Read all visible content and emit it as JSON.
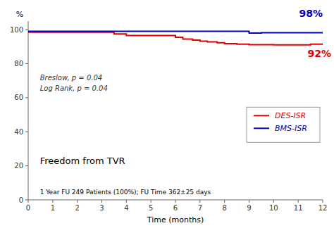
{
  "chart_data": {
    "type": "line",
    "xlabel": "Time (months)",
    "ylabel": "%",
    "xlim": [
      0,
      12
    ],
    "ylim": [
      0,
      105
    ],
    "xticks": [
      0,
      1,
      2,
      3,
      4,
      5,
      6,
      7,
      8,
      9,
      10,
      11,
      12
    ],
    "yticks": [
      0,
      20,
      40,
      60,
      80,
      100
    ],
    "grid": false,
    "legend": "right",
    "series": [
      {
        "name": "DES-ISR",
        "color": "#dd0000",
        "x": [
          0,
          3.5,
          3.5,
          4.0,
          4.0,
          6.0,
          6.0,
          6.3,
          6.3,
          6.7,
          6.7,
          7.0,
          7.0,
          7.3,
          7.3,
          7.7,
          7.7,
          8.0,
          8.0,
          8.5,
          8.5,
          9.0,
          9.0,
          10.0,
          10.0,
          11.5,
          11.5,
          12.0
        ],
        "values": [
          98.5,
          98.5,
          97.5,
          97.5,
          96.5,
          96.5,
          95.5,
          95.5,
          94.5,
          94.5,
          93.8,
          93.8,
          93.2,
          93.2,
          92.8,
          92.8,
          92.3,
          92.3,
          91.8,
          91.8,
          91.5,
          91.5,
          91.2,
          91.2,
          91.0,
          91.0,
          91.5,
          91.5
        ]
      },
      {
        "name": "BMS-ISR",
        "color": "#0000bb",
        "x": [
          0,
          9.0,
          9.0,
          9.5,
          9.5,
          12.0
        ],
        "values": [
          99.0,
          99.0,
          98.0,
          98.0,
          98.2,
          98.2
        ]
      }
    ],
    "annotations": [
      {
        "text": "98%",
        "color": "#0000bb"
      },
      {
        "text": "92%",
        "color": "#dd0000"
      },
      {
        "text": "Breslow, p = 0.04"
      },
      {
        "text": "Log Rank, p = 0.04"
      },
      {
        "text": "Freedom from TVR"
      },
      {
        "text": "1 Year FU 249 Patients (100%); FU Time 362±25 days"
      }
    ]
  }
}
